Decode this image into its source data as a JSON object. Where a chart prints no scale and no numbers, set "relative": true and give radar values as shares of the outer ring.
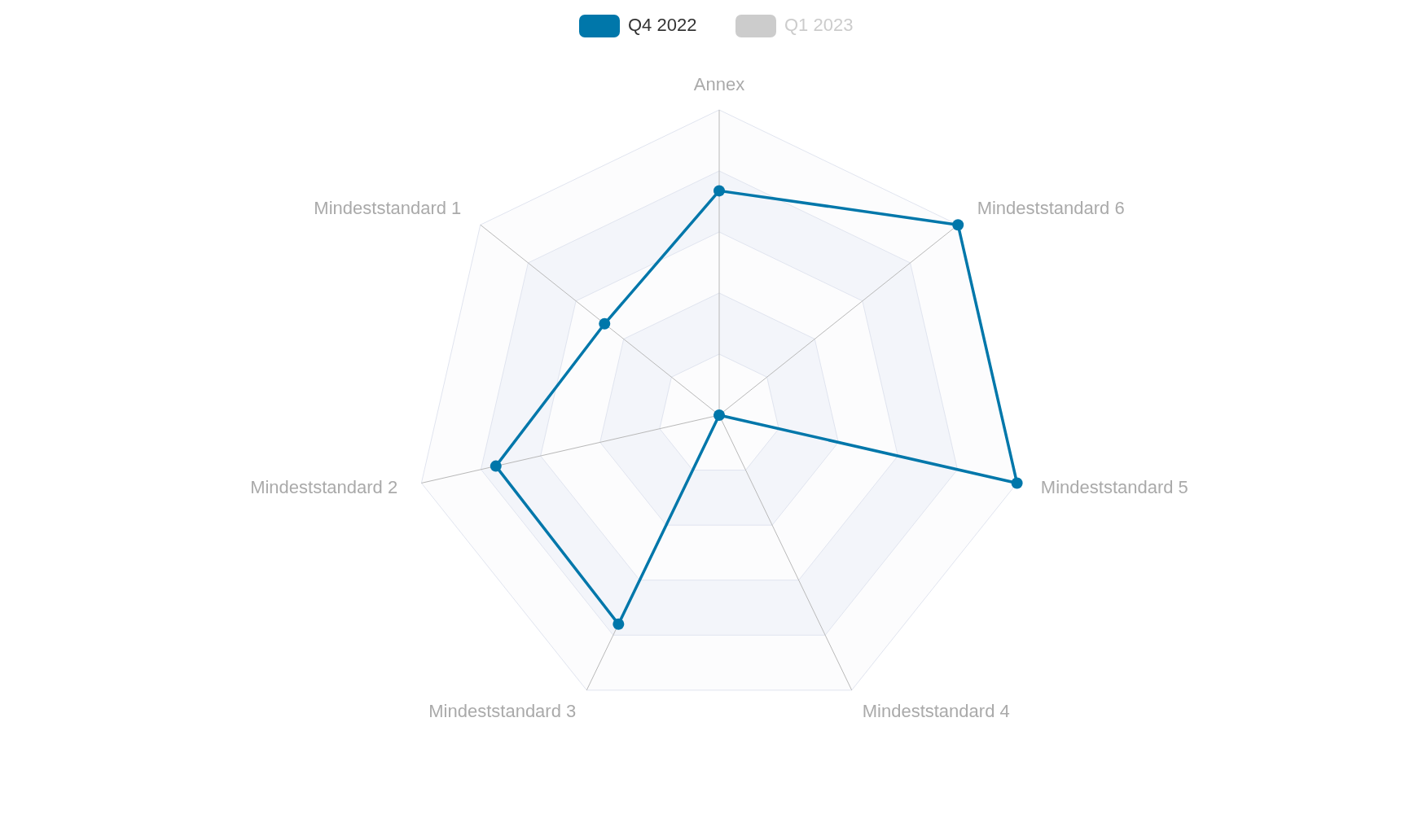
{
  "chart_data": {
    "type": "radar",
    "relative": true,
    "categories": [
      "Annex",
      "Mindeststandard 6",
      "Mindeststandard 5",
      "Mindeststandard 4",
      "Mindeststandard 3",
      "Mindeststandard 2",
      "Mindeststandard 1"
    ],
    "series": [
      {
        "name": "Q4 2022",
        "color": "#0077aa",
        "values": [
          0.735,
          1,
          1,
          0,
          0.76,
          0.75,
          0.48
        ]
      },
      {
        "name": "Q1 2023",
        "color": "#cccccc",
        "values": [
          null,
          null,
          null,
          null,
          null,
          null,
          null
        ]
      }
    ],
    "legend": "top",
    "marker": "circle",
    "grid": true
  }
}
